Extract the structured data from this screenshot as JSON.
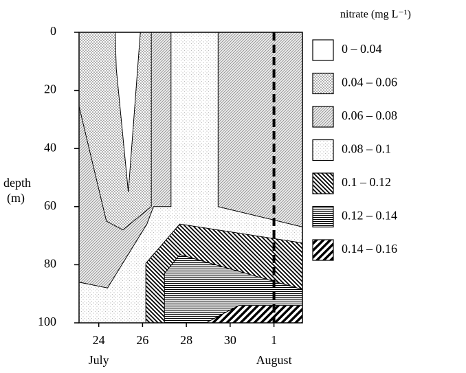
{
  "chart_data": {
    "type": "contour",
    "y_label": [
      "depth",
      "(m)"
    ],
    "legend_title": "nitrate (mg L⁻¹)",
    "xlim": [
      23.1,
      33.3
    ],
    "ylim": [
      100,
      0
    ],
    "xticks": [
      24,
      26,
      28,
      30,
      {
        "value": 32,
        "label": "1"
      }
    ],
    "yticks": [
      0,
      20,
      40,
      60,
      80,
      100
    ],
    "annotations": [
      {
        "text": "July",
        "x": 24
      },
      {
        "text": "August",
        "x": 32
      }
    ],
    "divider_x": 32,
    "levels": [
      {
        "label": "0 – 0.04",
        "polygons": [
          [
            [
              24.75,
              0
            ],
            [
              25.9,
              0
            ],
            [
              25.35,
              55
            ],
            [
              24.8,
              12.5
            ]
          ]
        ]
      },
      {
        "label": "0.04 – 0.06",
        "polygons": [
          [
            [
              23.1,
              0
            ],
            [
              26.4,
              0
            ],
            [
              26.4,
              60
            ],
            [
              25.1,
              68
            ],
            [
              24.35,
              65
            ],
            [
              23.1,
              25.5
            ]
          ]
        ]
      },
      {
        "label": "0.06 – 0.08",
        "polygons": [
          [
            [
              23.1,
              0
            ],
            [
              27.3,
              0
            ],
            [
              27.3,
              60
            ],
            [
              26.5,
              60
            ],
            [
              26.2,
              66
            ],
            [
              24.4,
              88
            ],
            [
              23.1,
              86
            ]
          ],
          [
            [
              29.45,
              0
            ],
            [
              33.3,
              0
            ],
            [
              33.3,
              67
            ],
            [
              29.45,
              60
            ]
          ]
        ]
      },
      {
        "label": "0.08 – 0.1",
        "polygons": [
          [
            [
              23.1,
              0
            ],
            [
              33.3,
              0
            ],
            [
              33.3,
              100
            ],
            [
              23.1,
              100
            ]
          ]
        ]
      },
      {
        "label": "0.1 – 0.12",
        "polygons": [
          [
            [
              26.15,
              100
            ],
            [
              26.15,
              79.5
            ],
            [
              27.7,
              66
            ],
            [
              33.3,
              72.5
            ],
            [
              33.3,
              100
            ]
          ]
        ]
      },
      {
        "label": "0.12 – 0.14",
        "polygons": [
          [
            [
              27.0,
              100
            ],
            [
              27.0,
              83
            ],
            [
              27.7,
              76.5
            ],
            [
              33.3,
              88.5
            ],
            [
              33.3,
              100
            ]
          ]
        ]
      },
      {
        "label": "0.14 – 0.16",
        "polygons": [
          [
            [
              28.9,
              100
            ],
            [
              30.4,
              94
            ],
            [
              33.3,
              94
            ],
            [
              33.3,
              100
            ]
          ]
        ]
      }
    ]
  }
}
